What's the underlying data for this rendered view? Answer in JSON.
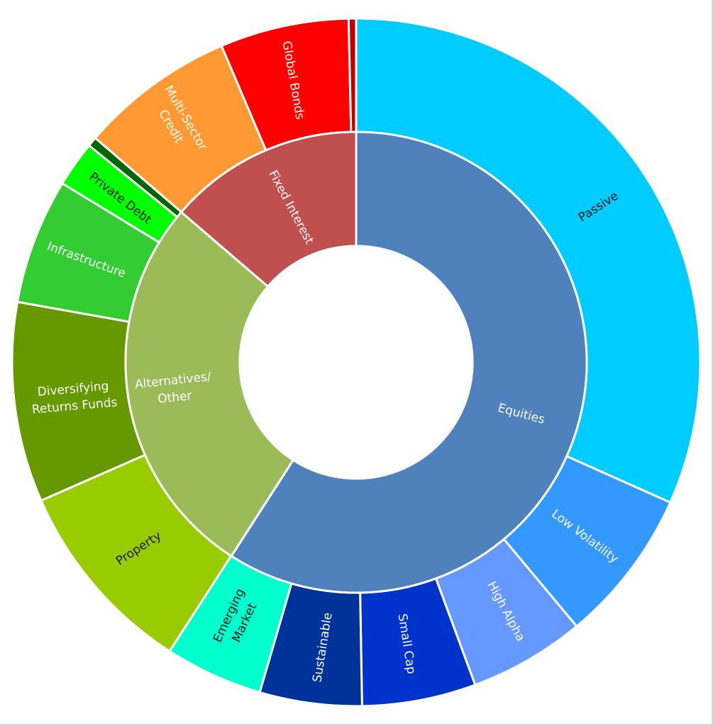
{
  "chart_data": {
    "type": "sunburst",
    "title": "",
    "unit": "share of total (%) estimated from arc angles",
    "center": [
      502,
      511
    ],
    "radii": {
      "hole": 164,
      "inner_outer": 325,
      "outer": 485
    },
    "inner_ring": [
      {
        "name": "Equities",
        "value": 59.1,
        "color": "#4F81BD",
        "text_color": "#ffffff",
        "label_pos": [
          735,
          583
        ],
        "label_rot": 15
      },
      {
        "name": "Alternatives/ Other",
        "lines": [
          "Alternatives/",
          "Other"
        ],
        "value": 27.2,
        "color": "#9BBB59",
        "text_color": "#ffffff",
        "label_pos": [
          245,
          548
        ],
        "label_rot": -6
      },
      {
        "name": "Fixed Interest",
        "value": 13.7,
        "color": "#C0504D",
        "text_color": "#ffffff",
        "label_pos": [
          411,
          292
        ],
        "label_rot": 62
      }
    ],
    "outer_ring": [
      {
        "name": "Passive",
        "parent": "Equities",
        "value": 31.7,
        "color": "#00CCFF",
        "text_color": "#1a1a1a",
        "label_pos": [
          843,
          291
        ],
        "label_rot": -33
      },
      {
        "name": "Low Volatility",
        "parent": "Equities",
        "value": 7.25,
        "color": "#3399FF",
        "text_color": "#ffffff",
        "label_pos": [
          825,
          756
        ],
        "label_rot": 37
      },
      {
        "name": "High Alpha",
        "parent": "Equities",
        "value": 5.45,
        "color": "#6699FF",
        "text_color": "#ffffff",
        "label_pos": [
          714,
          862
        ],
        "label_rot": 62
      },
      {
        "name": "Small Cap",
        "parent": "Equities",
        "value": 5.35,
        "color": "#0033CC",
        "text_color": "#ffffff",
        "label_pos": [
          574,
          908
        ],
        "label_rot": 81
      },
      {
        "name": "Sustainable",
        "parent": "Equities",
        "value": 4.8,
        "color": "#003399",
        "text_color": "#ffffff",
        "label_pos": [
          454,
          913
        ],
        "label_rot": -81
      },
      {
        "name": "Emerging Market",
        "lines": [
          "Emerging",
          "Market"
        ],
        "parent": "Equities",
        "value": 4.6,
        "color": "#00FFCC",
        "text_color": "#1a1a1a",
        "label_pos": [
          333,
          873
        ],
        "label_rot": -65
      },
      {
        "name": "Property",
        "parent": "Alternatives/ Other",
        "value": 9.3,
        "color": "#99CC00",
        "text_color": "#1a1a1a",
        "label_pos": [
          195,
          773
        ],
        "label_rot": -33
      },
      {
        "name": "Diversifying Returns Funds",
        "lines": [
          "Diversifying",
          "Returns Funds"
        ],
        "parent": "Alternatives/ Other",
        "value": 9.4,
        "color": "#669900",
        "text_color": "#ffffff",
        "label_pos": [
          104,
          560
        ],
        "label_rot": -5
      },
      {
        "name": "Infrastructure",
        "parent": "Alternatives/ Other",
        "value": 5.9,
        "color": "#33CC33",
        "text_color": "#ffffff",
        "label_pos": [
          122,
          366
        ],
        "label_rot": 20
      },
      {
        "name": "Private Debt",
        "parent": "Alternatives/ Other",
        "value": 2.15,
        "color": "#00FF00",
        "text_color": "#1a1a1a",
        "label_pos": [
          170,
          279
        ],
        "label_rot": 38
      },
      {
        "name": "",
        "parent": "Alternatives/ Other",
        "value": 0.45,
        "color": "#006600",
        "text_color": "#ffffff"
      },
      {
        "name": "Multi-Sector Credit",
        "lines": [
          "Multi-Sector",
          "Credit"
        ],
        "parent": "Fixed Interest",
        "value": 7.3,
        "color": "#FF9933",
        "text_color": "#ffffff",
        "label_pos": [
          252,
          172
        ],
        "label_rot": 60
      },
      {
        "name": "Global Bonds",
        "parent": "Fixed Interest",
        "value": 6.05,
        "color": "#FF0000",
        "text_color": "#ffffff",
        "label_pos": [
          414,
          113
        ],
        "label_rot": 80
      },
      {
        "name": "",
        "parent": "Fixed Interest",
        "value": 0.35,
        "color": "#C00000",
        "text_color": "#ffffff"
      }
    ],
    "legend": "none",
    "start_angle_deg": 0,
    "direction": "clockwise"
  }
}
